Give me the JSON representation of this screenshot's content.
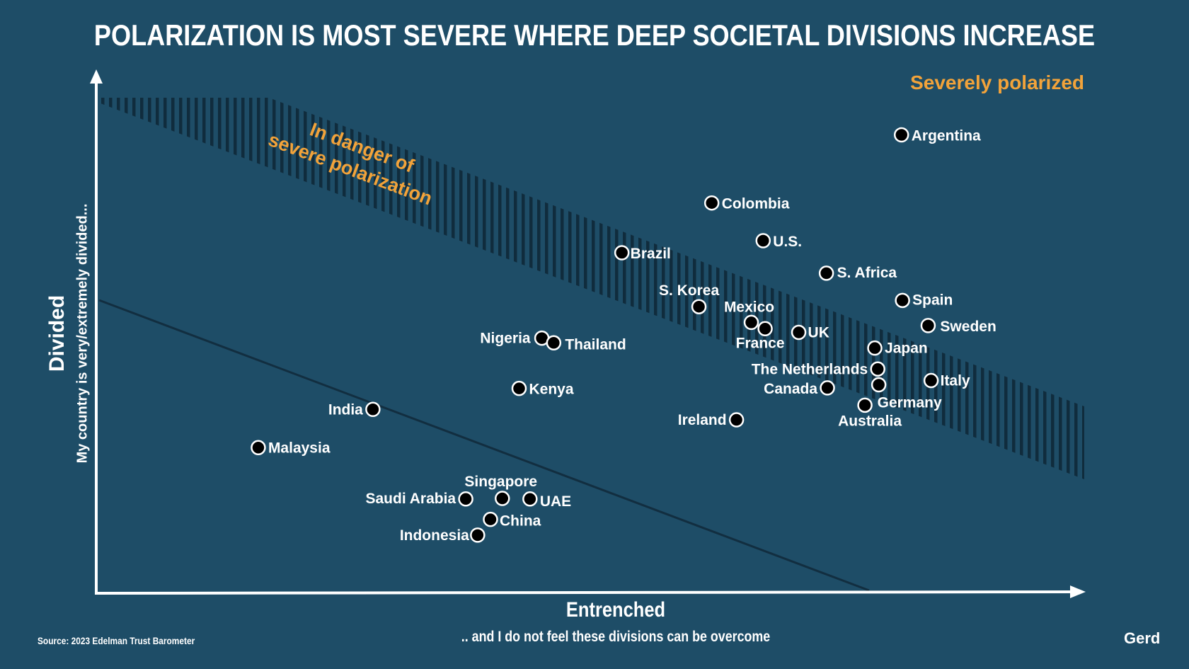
{
  "chart_data": {
    "type": "scatter",
    "title": "POLARIZATION IS MOST SEVERE WHERE DEEP SOCIETAL DIVISIONS INCREASE",
    "xlabel": "Entrenched",
    "xlabel_sub": ".. and I do not feel these divisions can be overcome",
    "ylabel": "Divided",
    "ylabel_sub": "My country is very/extremely divided...",
    "zones": {
      "top_right": "Severely polarized",
      "band": "In danger of\nsevere polarization"
    },
    "source": "Source: 2023 Edelman Trust Barometer",
    "logo": "Gerd",
    "colors": {
      "background": "#1e4d67",
      "accent": "#f2a33a",
      "axis": "#ffffff",
      "point": "#000000",
      "point_outline": "#ffffff",
      "band_stripe": "#102c3d",
      "line": "#122e40"
    },
    "points": [
      {
        "label": "Argentina",
        "x": 0.815,
        "y": 0.875
      },
      {
        "label": "Colombia",
        "x": 0.623,
        "y": 0.745
      },
      {
        "label": "U.S.",
        "x": 0.675,
        "y": 0.673
      },
      {
        "label": "Brazil",
        "x": 0.532,
        "y": 0.65
      },
      {
        "label": "S. Africa",
        "x": 0.739,
        "y": 0.611
      },
      {
        "label": "Spain",
        "x": 0.816,
        "y": 0.559
      },
      {
        "label": "S. Korea",
        "x": 0.61,
        "y": 0.547
      },
      {
        "label": "Sweden",
        "x": 0.842,
        "y": 0.511
      },
      {
        "label": "Mexico",
        "x": 0.663,
        "y": 0.517
      },
      {
        "label": "France",
        "x": 0.677,
        "y": 0.505
      },
      {
        "label": "UK",
        "x": 0.711,
        "y": 0.498
      },
      {
        "label": "Nigeria",
        "x": 0.451,
        "y": 0.487
      },
      {
        "label": "Thailand",
        "x": 0.463,
        "y": 0.478
      },
      {
        "label": "Japan",
        "x": 0.788,
        "y": 0.468
      },
      {
        "label": "The Netherlands",
        "x": 0.791,
        "y": 0.428
      },
      {
        "label": "Italy",
        "x": 0.845,
        "y": 0.406
      },
      {
        "label": "Germany",
        "x": 0.792,
        "y": 0.398
      },
      {
        "label": "Kenya",
        "x": 0.428,
        "y": 0.391
      },
      {
        "label": "Canada",
        "x": 0.74,
        "y": 0.392
      },
      {
        "label": "Australia",
        "x": 0.778,
        "y": 0.359
      },
      {
        "label": "India",
        "x": 0.28,
        "y": 0.351
      },
      {
        "label": "Ireland",
        "x": 0.648,
        "y": 0.331
      },
      {
        "label": "Malaysia",
        "x": 0.164,
        "y": 0.278
      },
      {
        "label": "Singapore",
        "x": 0.411,
        "y": 0.181
      },
      {
        "label": "Saudi Arabia",
        "x": 0.374,
        "y": 0.18
      },
      {
        "label": "UAE",
        "x": 0.439,
        "y": 0.18
      },
      {
        "label": "China",
        "x": 0.399,
        "y": 0.141
      },
      {
        "label": "Indonesia",
        "x": 0.386,
        "y": 0.111
      }
    ]
  }
}
